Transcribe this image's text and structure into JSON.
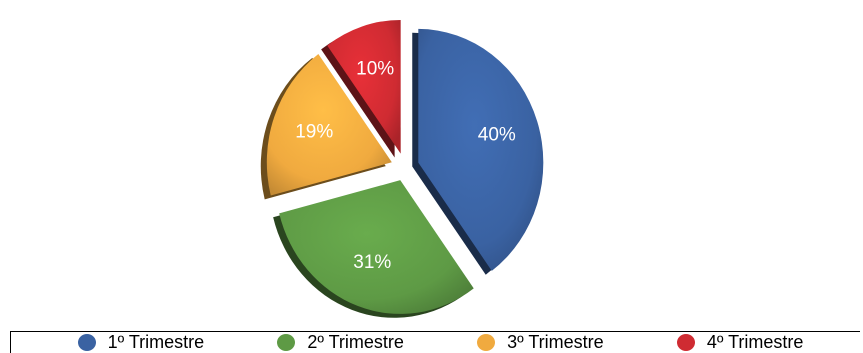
{
  "chart_data": {
    "type": "pie",
    "title": "",
    "categories": [
      "1º Trimestre",
      "2º Trimestre",
      "3º Trimestre",
      "4º Trimestre"
    ],
    "values": [
      40,
      31,
      19,
      10
    ],
    "labels": [
      "40%",
      "31%",
      "19%",
      "10%"
    ],
    "colors": [
      "#3a62a2",
      "#5e9a45",
      "#f0aa3f",
      "#cf2b32"
    ],
    "exploded": true,
    "legend_position": "bottom"
  },
  "legend": [
    {
      "label": "1º Trimestre",
      "color": "#3a62a2"
    },
    {
      "label": "2º Trimestre",
      "color": "#5e9a45"
    },
    {
      "label": "3º Trimestre",
      "color": "#f0aa3f"
    },
    {
      "label": "4º Trimestre",
      "color": "#cf2b32"
    }
  ]
}
